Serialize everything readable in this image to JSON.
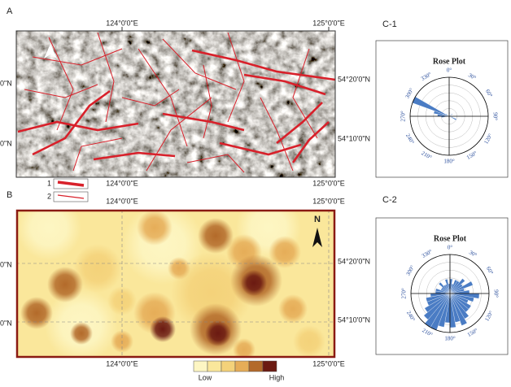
{
  "panel_a": {
    "label": "A",
    "top_lon": [
      "124°0'0\"E",
      "125°0'0\"E"
    ],
    "bottom_lon": [
      "124°0'0\"E",
      "125°0'0\"E"
    ],
    "right_lat": [
      "54°20'0\"N",
      "54°10'0\"N"
    ],
    "left_lat": [
      "0\"N",
      "0\"N"
    ],
    "legend": [
      "1",
      "2"
    ],
    "line_color": "#d8202a"
  },
  "panel_b": {
    "label": "B",
    "north": "N",
    "top_lon": [
      "124°0'0\"E",
      "125°0'0\"E"
    ],
    "bottom_lon": [
      "124°0'0\"E",
      "125°0'0\"E"
    ],
    "right_lat": [
      "54°20'0\"N",
      "54°10'0\"N"
    ],
    "left_lat": [
      "0\"N",
      "0\"N"
    ],
    "colorbar": {
      "colors": [
        "#fdf6c3",
        "#fae79b",
        "#f4d27a",
        "#e6ad58",
        "#b36a2a",
        "#6b1a12"
      ],
      "low": "Low",
      "high": "High"
    }
  },
  "panel_c": [
    {
      "label": "C-1",
      "title": "Rose Plot",
      "color": "#4a7cc4",
      "angle_labels": [
        "0°",
        "30°",
        "60°",
        "90°",
        "120°",
        "150°",
        "180°",
        "210°",
        "240°",
        "270°",
        "300°",
        "330°"
      ],
      "values": [
        1,
        0,
        0,
        0,
        0,
        1,
        0,
        0,
        0,
        0,
        1,
        2,
        0,
        0,
        0,
        0,
        0,
        1,
        0,
        0,
        0,
        0,
        0,
        0,
        0,
        0,
        2,
        3,
        4,
        10,
        1,
        0,
        0,
        0,
        0,
        0
      ]
    },
    {
      "label": "C-2",
      "title": "Rose Plot",
      "color": "#4a7cc4",
      "angle_labels": [
        "0°",
        "30°",
        "60°",
        "90°",
        "120°",
        "150°",
        "180°",
        "210°",
        "240°",
        "270°",
        "300°",
        "330°"
      ],
      "values": [
        3,
        2,
        3,
        3,
        4,
        3,
        5,
        3,
        4,
        6,
        5,
        4,
        5,
        5,
        6,
        7,
        6,
        7,
        6,
        7,
        8,
        8,
        7,
        6,
        5,
        5,
        4,
        3,
        3,
        2,
        2,
        3,
        2,
        2,
        3,
        2
      ]
    }
  ]
}
